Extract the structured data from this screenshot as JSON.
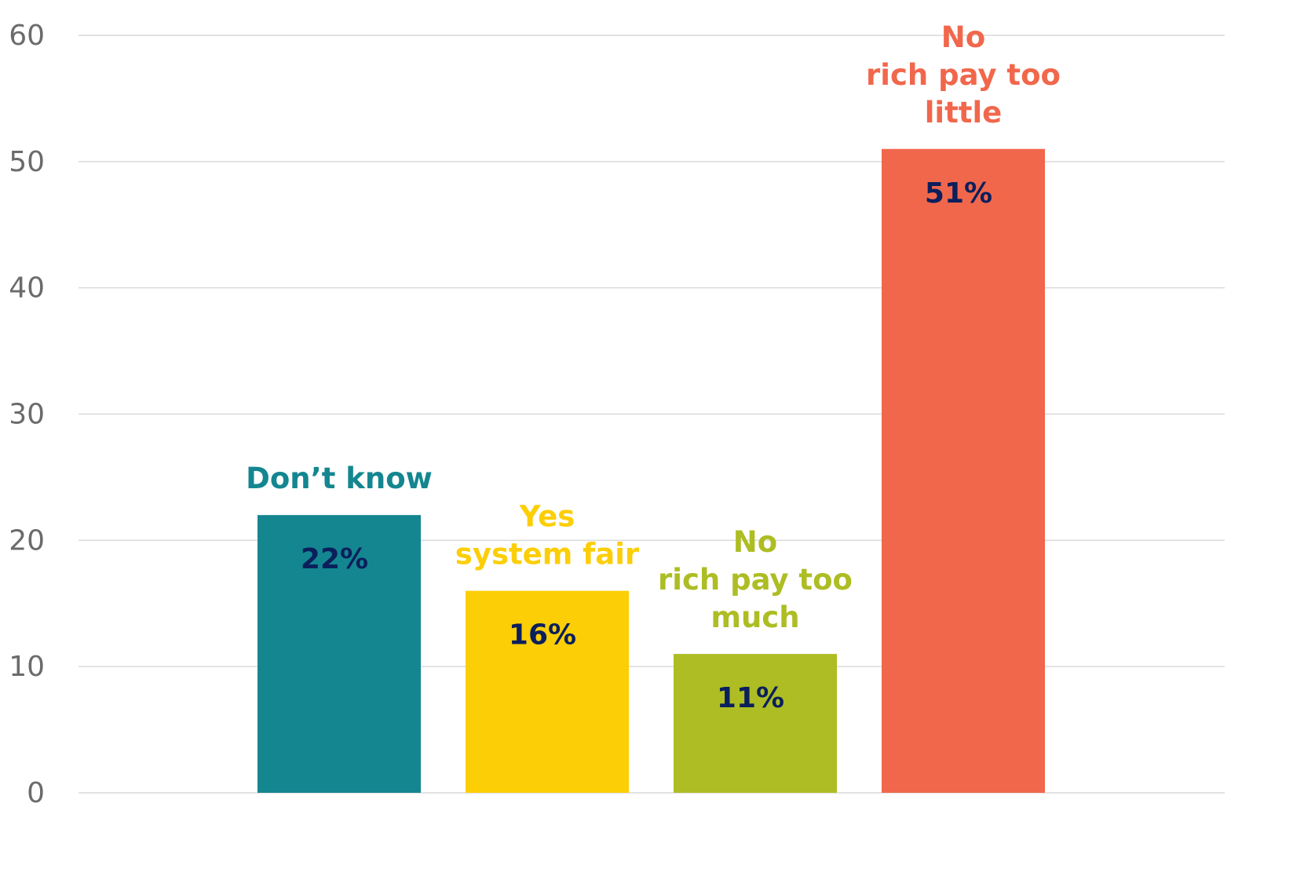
{
  "chart_data": {
    "type": "bar",
    "categories": [
      [
        "Don’t know"
      ],
      [
        "Yes",
        "system fair"
      ],
      [
        "No",
        "rich pay too",
        "much"
      ],
      [
        "No",
        "rich pay too",
        "little"
      ]
    ],
    "values": [
      22,
      16,
      11,
      51
    ],
    "value_labels": [
      "22%",
      "16%",
      "11%",
      "51%"
    ],
    "bar_colors": [
      "#148690",
      "#fcce06",
      "#adbd23",
      "#f1674c"
    ],
    "label_colors": [
      "#148690",
      "#fcce06",
      "#adbd23",
      "#f1674c"
    ],
    "value_label_color": "#0b1f5c",
    "y_ticks": [
      "0",
      "10",
      "20",
      "30",
      "40",
      "50",
      "60"
    ],
    "ylim": [
      0,
      60
    ],
    "grid": true,
    "gridline_color": "#d9d9d9",
    "legend": "none",
    "title": "",
    "xlabel": "",
    "ylabel": ""
  }
}
